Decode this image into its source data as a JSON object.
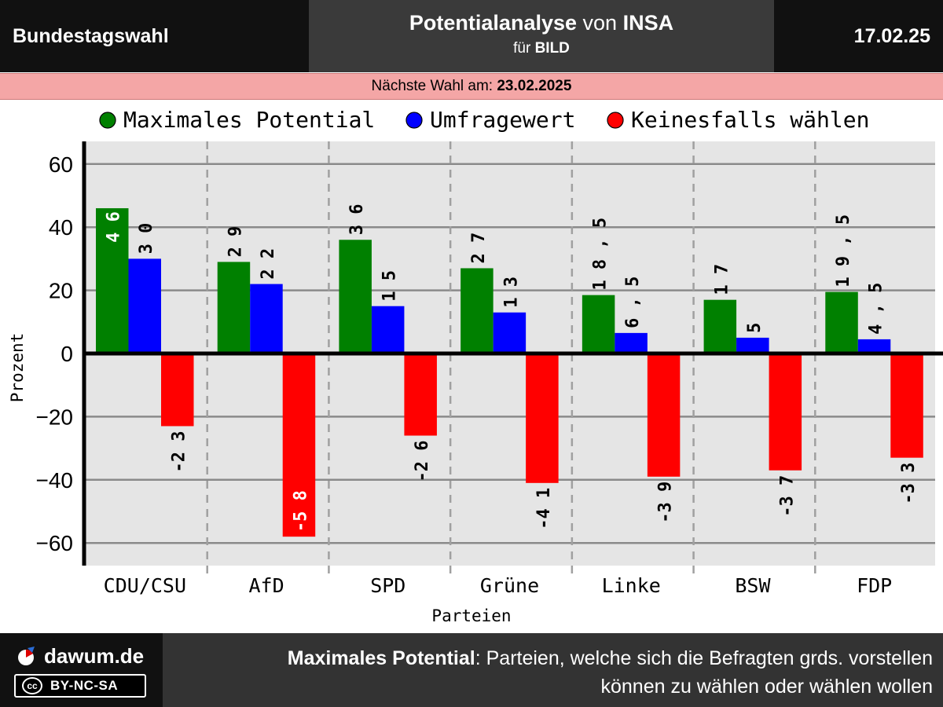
{
  "header": {
    "left_title": "Bundestagswahl",
    "center_part1": "Potentialanalyse",
    "center_part2": " von ",
    "center_part3": "INSA",
    "center_sub1": "für ",
    "center_sub2": "BILD",
    "date": "17.02.25"
  },
  "subheader": {
    "label": "Nächste Wahl am: ",
    "date": "23.02.2025"
  },
  "footer": {
    "brand": "dawum.de",
    "license": "BY-NC-SA",
    "license_badge": "cc",
    "note_bold": "Maximales Potential",
    "note_line1": ": Parteien, welche sich die Befragten grds. vorstellen",
    "note_line2": "können zu wählen oder wählen wollen"
  },
  "chart_data": {
    "type": "bar",
    "xlabel": "Parteien",
    "ylabel": "Prozent",
    "ylim": [
      -68,
      68
    ],
    "yticks": [
      60,
      40,
      20,
      0,
      -20,
      -40,
      -60
    ],
    "categories": [
      "CDU/CSU",
      "AfD",
      "SPD",
      "Grüne",
      "Linke",
      "BSW",
      "FDP"
    ],
    "series": [
      {
        "name": "Maximales Potential",
        "color": "#008000",
        "values": [
          46,
          29,
          36,
          27,
          18.5,
          17,
          19.5
        ]
      },
      {
        "name": "Umfragewert",
        "color": "#0000ff",
        "values": [
          30,
          22,
          15,
          13,
          6.5,
          5,
          4.5
        ]
      },
      {
        "name": "Keinesfalls wählen",
        "color": "#ff0000",
        "values": [
          -23,
          -58,
          -26,
          -41,
          -39,
          -37,
          -33
        ]
      }
    ],
    "grid": true,
    "legend": "top"
  }
}
